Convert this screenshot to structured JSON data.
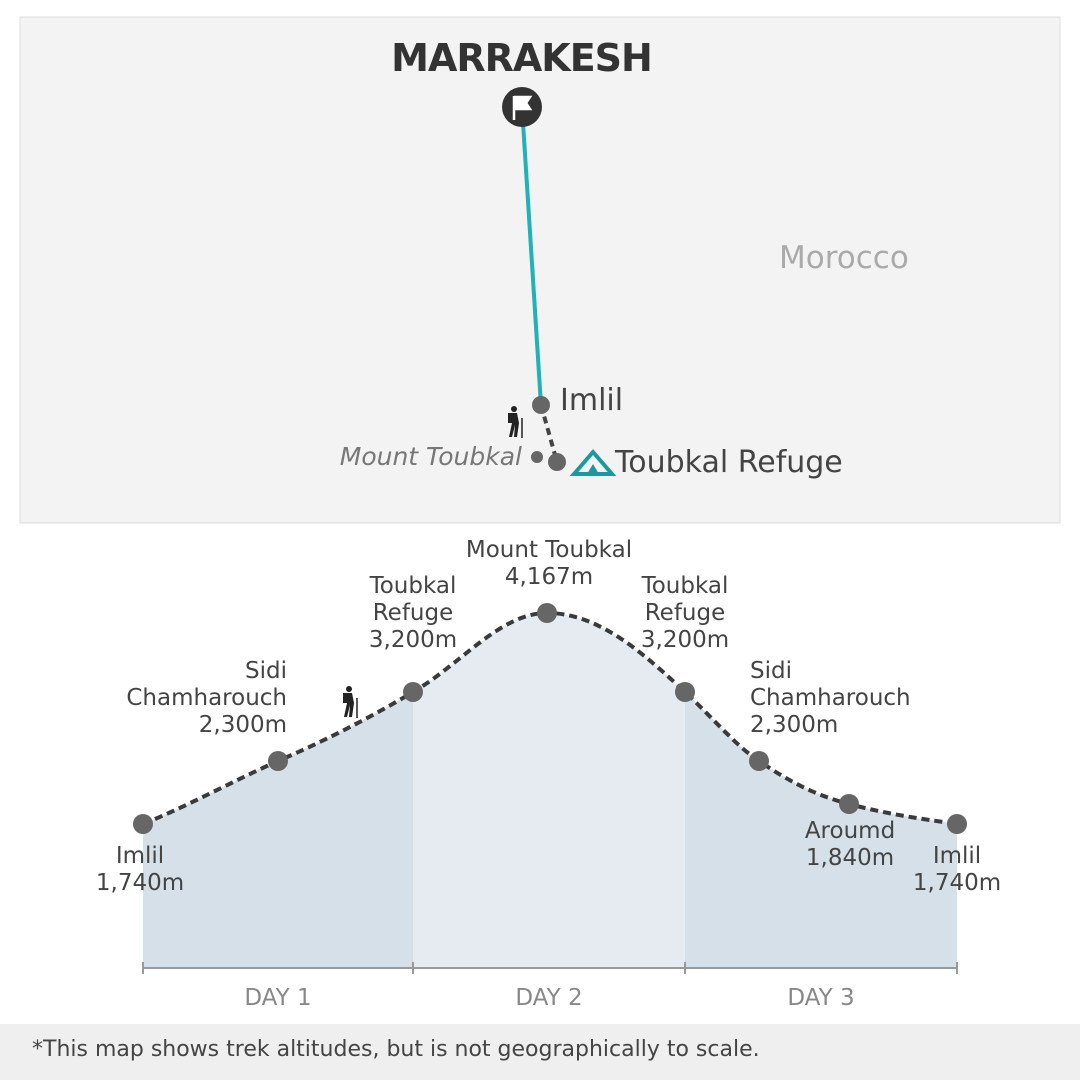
{
  "map": {
    "city": "MARRAKESH",
    "country": "Morocco",
    "places": [
      "Imlil",
      "Mount Toubkal",
      "Toubkal Refuge"
    ]
  },
  "profile": {
    "points": [
      {
        "name": "Imlil",
        "altitude": "1,740m"
      },
      {
        "name": "Sidi Chamharouch",
        "altitude": "2,300m"
      },
      {
        "name": "Toubkal Refuge",
        "altitude": "3,200m"
      },
      {
        "name": "Mount Toubkal",
        "altitude": "4,167m"
      },
      {
        "name": "Toubkal Refuge",
        "altitude": "3,200m"
      },
      {
        "name": "Sidi Chamharouch",
        "altitude": "2,300m"
      },
      {
        "name": "Aroumd",
        "altitude": "1,840m"
      },
      {
        "name": "Imlil",
        "altitude": "1,740m"
      }
    ],
    "days": [
      "DAY 1",
      "DAY 2",
      "DAY 3"
    ]
  },
  "footnote": "*This map shows trek altitudes, but is not geographically to scale."
}
